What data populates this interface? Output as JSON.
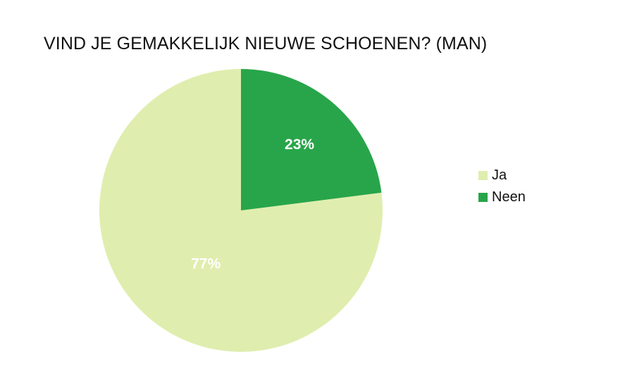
{
  "chart_data": {
    "type": "pie",
    "title": "VIND JE GEMAKKELIJK NIEUWE SCHOENEN? (MAN)",
    "categories": [
      "Ja",
      "Neen"
    ],
    "values": [
      77,
      23
    ],
    "labels": [
      "77%",
      "23%"
    ],
    "colors": [
      "#dfeeae",
      "#28a54a"
    ],
    "label_color": "#ffffff",
    "legend_position": "right",
    "start": "top-clockwise-neen-first"
  }
}
